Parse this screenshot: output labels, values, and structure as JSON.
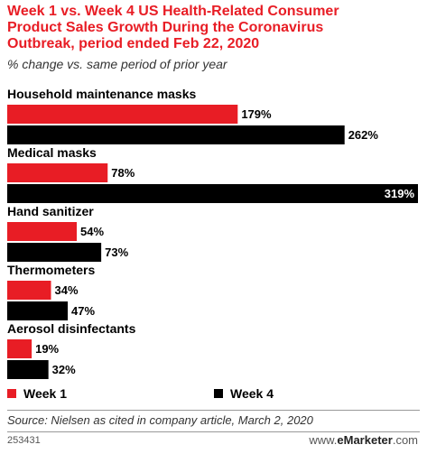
{
  "header": {
    "title": "Week 1 vs. Week 4 US Health-Related Consumer Product Sales Growth During the Coronavirus Outbreak, period ended Feb 22, 2020",
    "subtitle": "% change vs. same period of prior year"
  },
  "chart_data": {
    "type": "bar",
    "orientation": "horizontal",
    "categories": [
      "Household maintenance masks",
      "Medical masks",
      "Hand sanitizer",
      "Thermometers",
      "Aerosol disinfectants"
    ],
    "series": [
      {
        "name": "Week 1",
        "color": "#e81d25",
        "values": [
          179,
          78,
          54,
          34,
          19
        ],
        "labels": [
          "179%",
          "78%",
          "54%",
          "34%",
          "19%"
        ]
      },
      {
        "name": "Week 4",
        "color": "#000000",
        "values": [
          262,
          319,
          73,
          47,
          32
        ],
        "labels": [
          "262%",
          "319%",
          "73%",
          "47%",
          "32%"
        ]
      }
    ],
    "xlim": [
      0,
      319
    ],
    "grid": false,
    "legend_position": "bottom"
  },
  "footer": {
    "source": "Source: Nielsen as cited in company article, March 2, 2020",
    "chart_id": "253431",
    "brand_prefix": "www.",
    "brand_name": "eMarketer",
    "brand_suffix": ".com"
  }
}
